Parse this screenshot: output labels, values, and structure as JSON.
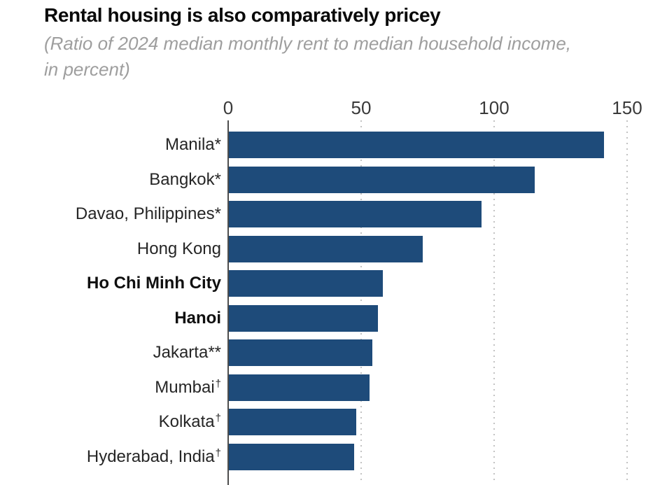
{
  "header": {
    "title": "Rental housing is also comparatively pricey",
    "subtitle_line1": "(Ratio of 2024 median monthly rent to median household income,",
    "subtitle_line2": "in percent)"
  },
  "chart_data": {
    "type": "bar",
    "orientation": "horizontal",
    "title": "Rental housing is also comparatively pricey",
    "subtitle": "(Ratio of 2024 median monthly rent to median household income, in percent)",
    "xlabel": "",
    "ylabel": "",
    "xlim": [
      0,
      150
    ],
    "x_ticks": [
      0,
      50,
      100,
      150
    ],
    "grid": "vertical dotted gridlines at 50, 100, 150; solid axis line at 0",
    "legend": "none",
    "bar_color": "#1e4b7a",
    "categories": [
      "Manila*",
      "Bangkok*",
      "Davao, Philippines*",
      "Hong Kong",
      "Ho Chi Minh City",
      "Hanoi",
      "Jakarta**",
      "Mumbai†",
      "Kolkata†",
      "Hyderabad, India†"
    ],
    "values": [
      141,
      115,
      95,
      73,
      58,
      56,
      54,
      53,
      48,
      47
    ],
    "bars": [
      {
        "city": "Manila",
        "suffix": "*",
        "suffix_superscript": false,
        "bold": false,
        "value": 141
      },
      {
        "city": "Bangkok",
        "suffix": "*",
        "suffix_superscript": false,
        "bold": false,
        "value": 115
      },
      {
        "city": "Davao, Philippines",
        "suffix": "*",
        "suffix_superscript": false,
        "bold": false,
        "value": 95
      },
      {
        "city": "Hong Kong",
        "suffix": "",
        "suffix_superscript": false,
        "bold": false,
        "value": 73
      },
      {
        "city": "Ho Chi Minh City",
        "suffix": "",
        "suffix_superscript": false,
        "bold": true,
        "value": 58
      },
      {
        "city": "Hanoi",
        "suffix": "",
        "suffix_superscript": false,
        "bold": true,
        "value": 56
      },
      {
        "city": "Jakarta",
        "suffix": "**",
        "suffix_superscript": false,
        "bold": false,
        "value": 54
      },
      {
        "city": "Mumbai",
        "suffix": "†",
        "suffix_superscript": true,
        "bold": false,
        "value": 53
      },
      {
        "city": "Kolkata",
        "suffix": "†",
        "suffix_superscript": true,
        "bold": false,
        "value": 48
      },
      {
        "city": "Hyderabad, India",
        "suffix": "†",
        "suffix_superscript": true,
        "bold": false,
        "value": 47
      }
    ]
  }
}
